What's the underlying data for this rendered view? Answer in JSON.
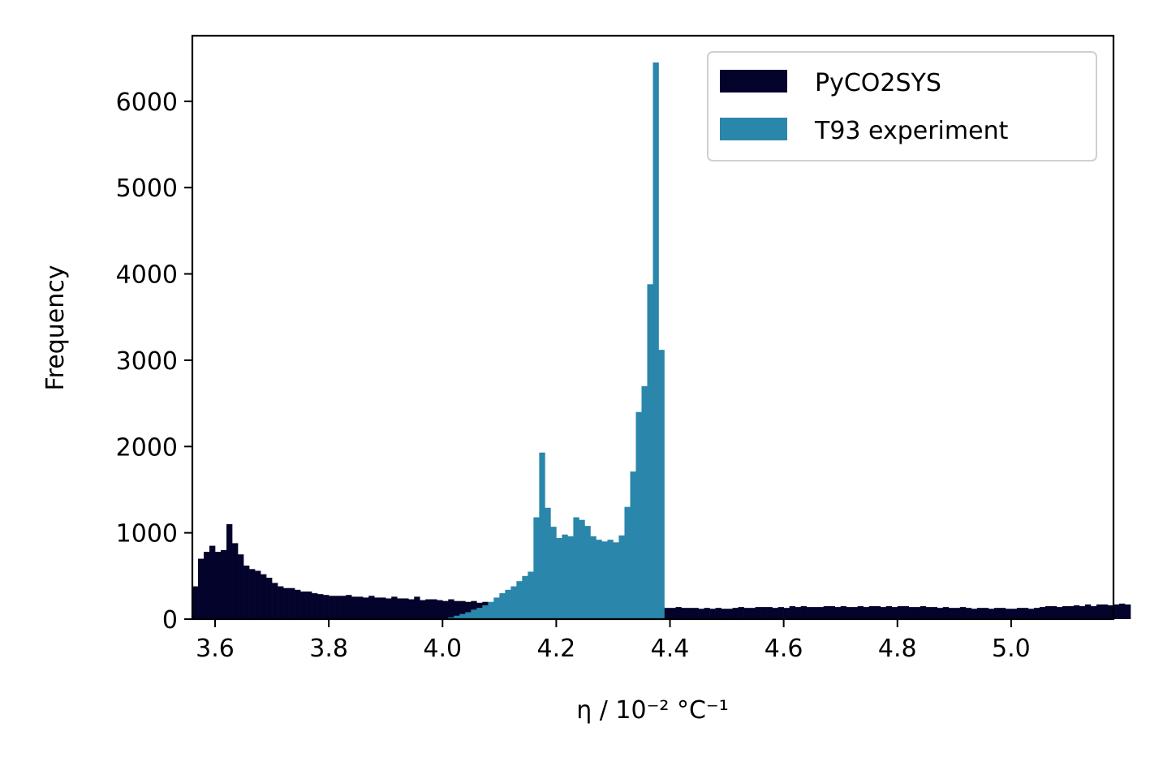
{
  "chart_data": {
    "type": "bar",
    "subtype": "histogram",
    "title": "",
    "xlabel": "η / 10⁻² °C⁻¹",
    "ylabel": "Frequency",
    "xlim": [
      3.56,
      5.18
    ],
    "ylim": [
      0,
      6760
    ],
    "xticks": [
      3.6,
      3.8,
      4.0,
      4.2,
      4.4,
      4.6,
      4.8,
      5.0
    ],
    "xtick_labels": [
      "3.6",
      "3.8",
      "4.0",
      "4.2",
      "4.4",
      "4.6",
      "4.8",
      "5.0"
    ],
    "yticks": [
      0,
      1000,
      2000,
      3000,
      4000,
      5000,
      6000
    ],
    "ytick_labels": [
      "0",
      "1000",
      "2000",
      "3000",
      "4000",
      "5000",
      "6000"
    ],
    "grid": false,
    "legend_position": "top-right",
    "series": [
      {
        "name": "PyCO2SYS",
        "color": "#03032b",
        "bin_start": 3.56,
        "bin_width": 0.01,
        "values": [
          380,
          700,
          780,
          850,
          780,
          800,
          1100,
          880,
          750,
          620,
          580,
          560,
          520,
          480,
          420,
          380,
          360,
          360,
          340,
          320,
          320,
          300,
          290,
          280,
          270,
          270,
          270,
          280,
          260,
          260,
          250,
          270,
          250,
          250,
          240,
          260,
          240,
          240,
          230,
          260,
          220,
          230,
          230,
          220,
          210,
          230,
          210,
          210,
          200,
          210,
          190,
          200,
          190,
          200,
          180,
          190,
          170,
          180,
          180,
          180,
          170,
          170,
          160,
          170,
          160,
          160,
          150,
          150,
          150,
          150,
          140,
          140,
          140,
          140,
          140,
          130,
          140,
          130,
          130,
          140,
          130,
          130,
          140,
          130,
          130,
          140,
          130,
          130,
          130,
          120,
          130,
          120,
          130,
          120,
          120,
          130,
          140,
          130,
          130,
          140,
          140,
          140,
          130,
          140,
          130,
          150,
          140,
          150,
          140,
          140,
          140,
          150,
          150,
          140,
          150,
          140,
          140,
          150,
          140,
          150,
          150,
          140,
          150,
          140,
          150,
          150,
          140,
          140,
          150,
          140,
          140,
          130,
          140,
          130,
          130,
          140,
          130,
          120,
          130,
          130,
          120,
          130,
          130,
          120,
          120,
          130,
          130,
          120,
          130,
          140,
          150,
          150,
          140,
          150,
          150,
          160,
          150,
          170,
          150,
          170,
          170,
          160,
          170,
          180,
          170
        ]
      },
      {
        "name": "T93 experiment",
        "color": "#2a86aa",
        "bin_start": 4.0,
        "bin_width": 0.01,
        "values": [
          10,
          20,
          40,
          60,
          80,
          110,
          130,
          160,
          200,
          250,
          300,
          340,
          380,
          440,
          500,
          550,
          1180,
          1930,
          1290,
          1070,
          940,
          980,
          960,
          1180,
          1150,
          1080,
          960,
          920,
          900,
          920,
          890,
          970,
          1300,
          1710,
          2400,
          2700,
          3880,
          6450,
          3120
        ]
      }
    ]
  }
}
